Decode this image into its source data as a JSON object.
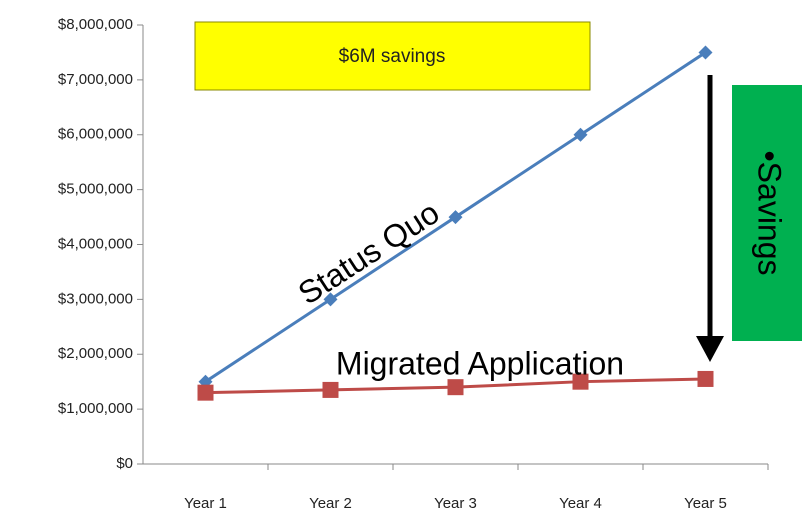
{
  "chart_data": {
    "type": "line",
    "categories": [
      "Year 1",
      "Year 2",
      "Year 3",
      "Year 4",
      "Year 5"
    ],
    "series": [
      {
        "name": "Status Quo",
        "color": "#4a7ebb",
        "marker": "diamond",
        "values": [
          1500000,
          3000000,
          4500000,
          6000000,
          7500000
        ]
      },
      {
        "name": "Migrated Application",
        "color": "#be4b48",
        "marker": "square",
        "values": [
          1300000,
          1350000,
          1400000,
          1500000,
          1550000
        ]
      }
    ],
    "ylim": [
      0,
      8000000
    ],
    "yticks": [
      {
        "value": 0,
        "label": "$0"
      },
      {
        "value": 1000000,
        "label": "$1,000,000"
      },
      {
        "value": 2000000,
        "label": "$2,000,000"
      },
      {
        "value": 3000000,
        "label": "$3,000,000"
      },
      {
        "value": 4000000,
        "label": "$4,000,000"
      },
      {
        "value": 5000000,
        "label": "$5,000,000"
      },
      {
        "value": 6000000,
        "label": "$6,000,000"
      },
      {
        "value": 7000000,
        "label": "$7,000,000"
      },
      {
        "value": 8000000,
        "label": "$8,000,000"
      }
    ],
    "grid": false,
    "annotations": [
      "$6M savings",
      "•Savings"
    ]
  }
}
